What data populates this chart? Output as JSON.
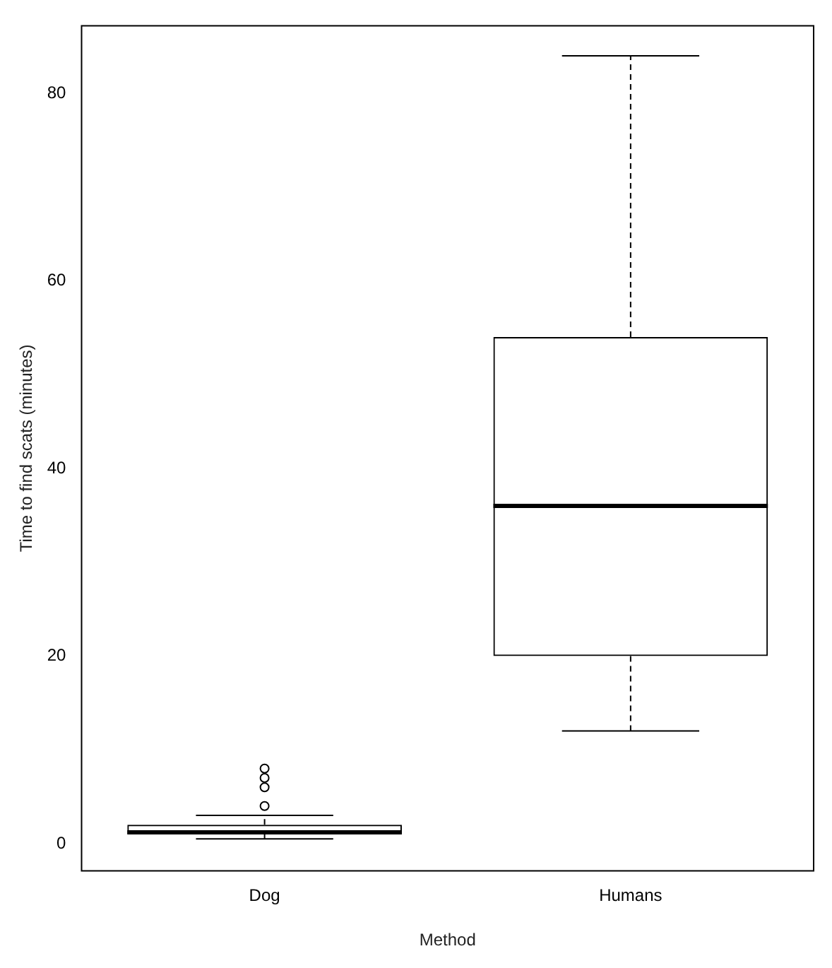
{
  "chart_data": {
    "type": "box",
    "xlabel": "Method",
    "ylabel": "Time to find scats (minutes)",
    "categories": [
      "Dog",
      "Humans"
    ],
    "boxes": [
      {
        "low": 0.5,
        "q1": 1,
        "median": 1.2,
        "q3": 2,
        "high": 3,
        "outliers": [
          4,
          6,
          7,
          8
        ]
      },
      {
        "low": 12,
        "q1": 20,
        "median": 36,
        "q3": 54,
        "high": 84
      }
    ],
    "color": "#000000",
    "ylim": [
      -2.9,
      87.2
    ],
    "yticks": [
      0,
      20,
      40,
      60,
      80
    ],
    "grid": false,
    "legend": false
  }
}
